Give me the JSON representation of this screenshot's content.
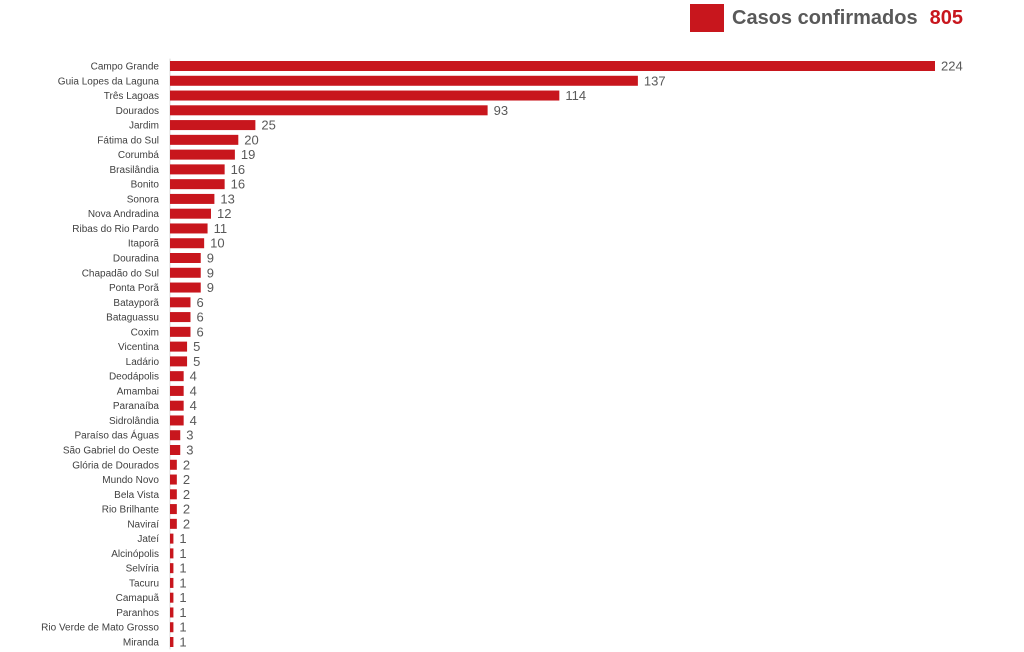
{
  "legend": {
    "label": "Casos confirmados",
    "total": "805",
    "color": "#c8161d"
  },
  "chart_data": {
    "type": "bar",
    "orientation": "horizontal",
    "title": "",
    "xlabel": "",
    "ylabel": "",
    "grid": false,
    "bar_color": "#c8161d",
    "series": [
      {
        "name": "Casos confirmados",
        "values": [
          224,
          137,
          114,
          93,
          25,
          20,
          19,
          16,
          16,
          13,
          12,
          11,
          10,
          9,
          9,
          9,
          6,
          6,
          6,
          5,
          5,
          4,
          4,
          4,
          4,
          3,
          3,
          2,
          2,
          2,
          2,
          2,
          1,
          1,
          1,
          1,
          1,
          1,
          1,
          1
        ]
      }
    ],
    "categories": [
      "Campo Grande",
      "Guia Lopes da Laguna",
      "Três Lagoas",
      "Dourados",
      "Jardim",
      "Fátima do Sul",
      "Corumbá",
      "Brasilândia",
      "Bonito",
      "Sonora",
      "Nova Andradina",
      "Ribas do Rio Pardo",
      "Itaporã",
      "Douradina",
      "Chapadão do Sul",
      "Ponta Porã",
      "Batayporã",
      "Bataguassu",
      "Coxim",
      "Vicentina",
      "Ladário",
      "Deodápolis",
      "Amambai",
      "Paranaíba",
      "Sidrolândia",
      "Paraíso das Águas",
      "São Gabriel do Oeste",
      "Glória de Dourados",
      "Mundo Novo",
      "Bela Vista",
      "Rio Brilhante",
      "Naviraí",
      "Jateí",
      "Alcinópolis",
      "Selvíria",
      "Tacuru",
      "Camapuã",
      "Paranhos",
      "Rio Verde de Mato Grosso",
      "Miranda"
    ]
  }
}
